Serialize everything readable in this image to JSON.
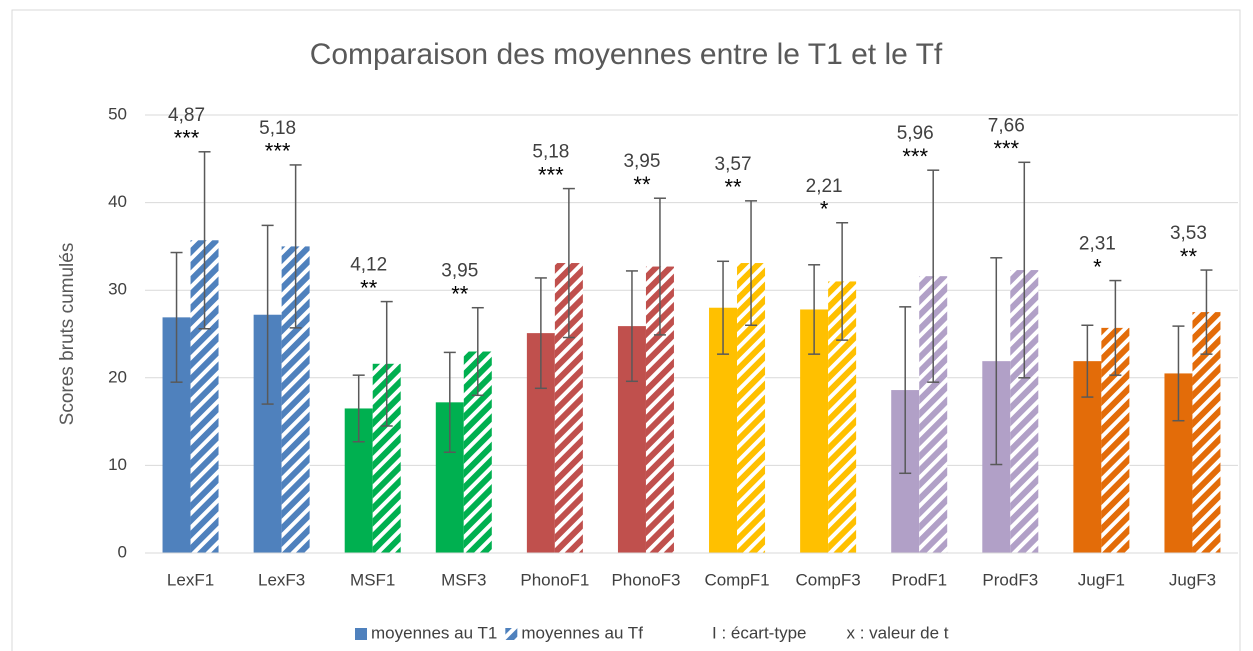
{
  "chart_data": {
    "type": "bar",
    "title": "Comparaison des moyennes entre le T1 et le Tf",
    "y_label": "Scores bruts cumulés",
    "categories": [
      "LexF1",
      "LexF3",
      "MSF1",
      "MSF3",
      "PhonoF1",
      "PhonoF3",
      "CompF1",
      "CompF3",
      "ProdF1",
      "ProdF3",
      "JugF1",
      "JugF3"
    ],
    "colors": [
      "#4f81bd",
      "#4f81bd",
      "#00b050",
      "#00b050",
      "#c0504d",
      "#c0504d",
      "#ffc000",
      "#ffc000",
      "#b1a0c7",
      "#b1a0c7",
      "#e36c09",
      "#e36c09"
    ],
    "series": [
      {
        "name": "moyennes au T1",
        "pattern": "solid",
        "values": [
          26.9,
          27.2,
          16.5,
          17.2,
          25.1,
          25.9,
          28.0,
          27.8,
          18.6,
          21.9,
          21.9,
          20.5
        ],
        "errors": [
          7.4,
          10.2,
          3.8,
          5.7,
          6.3,
          6.3,
          5.3,
          5.1,
          9.5,
          11.8,
          4.1,
          5.4
        ]
      },
      {
        "name": "moyennes au Tf",
        "pattern": "hatched",
        "values": [
          35.7,
          35.0,
          21.6,
          23.0,
          33.1,
          32.7,
          33.1,
          31.0,
          31.6,
          32.3,
          25.7,
          27.5
        ],
        "errors": [
          10.1,
          9.3,
          7.1,
          5.0,
          8.5,
          7.8,
          7.1,
          6.7,
          12.1,
          12.3,
          5.4,
          4.8
        ]
      }
    ],
    "annotations": [
      {
        "t": "4,87",
        "stars": "***"
      },
      {
        "t": "5,18",
        "stars": "***"
      },
      {
        "t": "4,12",
        "stars": "**"
      },
      {
        "t": "3,95",
        "stars": "**"
      },
      {
        "t": "5,18",
        "stars": "***"
      },
      {
        "t": "3,95",
        "stars": "**"
      },
      {
        "t": "3,57",
        "stars": "**"
      },
      {
        "t": "2,21",
        "stars": "*"
      },
      {
        "t": "5,96",
        "stars": "***"
      },
      {
        "t": "7,66",
        "stars": "***"
      },
      {
        "t": "2,31",
        "stars": "*"
      },
      {
        "t": "3,53",
        "stars": "**"
      }
    ],
    "legend_notes": [
      "I : écart-type",
      "x : valeur de t"
    ],
    "ylim": [
      0,
      50
    ],
    "yticks": [
      0,
      10,
      20,
      30,
      40,
      50
    ],
    "grid": true,
    "legend": "bottom"
  }
}
